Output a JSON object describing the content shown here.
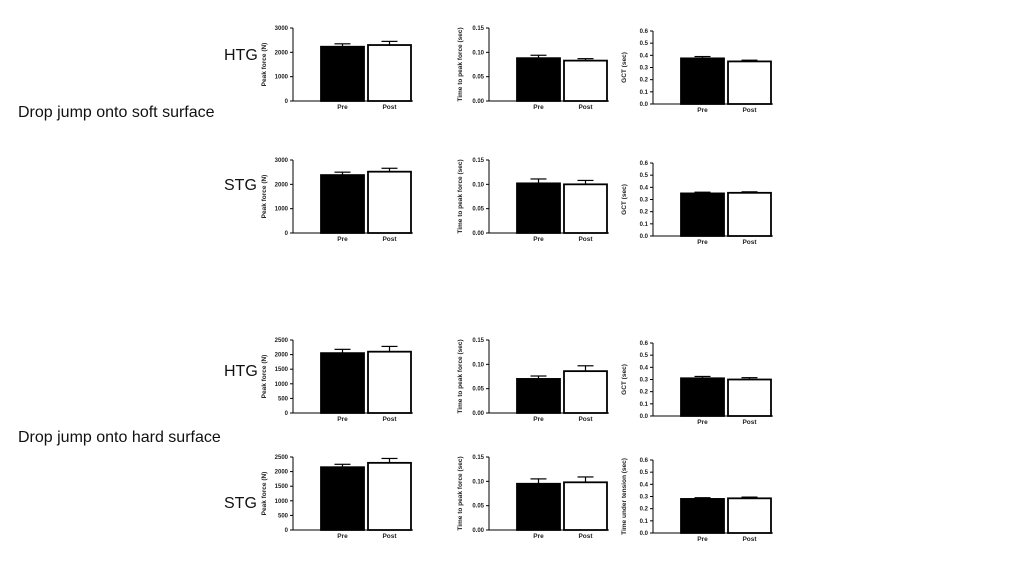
{
  "labels": {
    "soft_section": "Drop jump onto soft surface",
    "hard_section": "Drop jump onto hard surface",
    "row1_group": "HTG",
    "row2_group": "STG",
    "row3_group": "HTG",
    "row4_group": "STG"
  },
  "chart_data": [
    {
      "type": "bar",
      "panel": "soft-HTG-peak-force",
      "categories": [
        "Pre",
        "Post"
      ],
      "values": [
        2230,
        2300
      ],
      "errors": [
        120,
        150
      ],
      "ylabel": "Peak force (N)",
      "ylim": [
        0,
        3000
      ],
      "yticks": [
        "0",
        "1000",
        "2000",
        "3000"
      ]
    },
    {
      "type": "bar",
      "panel": "soft-HTG-time-to-peak",
      "categories": [
        "Pre",
        "Post"
      ],
      "values": [
        0.088,
        0.083
      ],
      "errors": [
        0.006,
        0.004
      ],
      "ylabel": "Time to peak force (sec)",
      "ylim": [
        0,
        0.15
      ],
      "yticks": [
        "0.00",
        "0.05",
        "0.10",
        "0.15"
      ]
    },
    {
      "type": "bar",
      "panel": "soft-HTG-gct",
      "categories": [
        "Pre",
        "Post"
      ],
      "values": [
        0.375,
        0.35
      ],
      "errors": [
        0.015,
        0.01
      ],
      "ylabel": "GCT (sec)",
      "ylim": [
        0,
        0.6
      ],
      "yticks": [
        "0.0",
        "0.1",
        "0.2",
        "0.3",
        "0.4",
        "0.5",
        "0.6"
      ]
    },
    {
      "type": "bar",
      "panel": "soft-STG-peak-force",
      "categories": [
        "Pre",
        "Post"
      ],
      "values": [
        2380,
        2520
      ],
      "errors": [
        120,
        140
      ],
      "ylabel": "Peak force (N)",
      "ylim": [
        0,
        3000
      ],
      "yticks": [
        "0",
        "1000",
        "2000",
        "3000"
      ]
    },
    {
      "type": "bar",
      "panel": "soft-STG-time-to-peak",
      "categories": [
        "Pre",
        "Post"
      ],
      "values": [
        0.102,
        0.1
      ],
      "errors": [
        0.009,
        0.008
      ],
      "ylabel": "Time to peak force (sec)",
      "ylim": [
        0,
        0.15
      ],
      "yticks": [
        "0.00",
        "0.05",
        "0.10",
        "0.15"
      ]
    },
    {
      "type": "bar",
      "panel": "soft-STG-gct",
      "categories": [
        "Pre",
        "Post"
      ],
      "values": [
        0.35,
        0.355
      ],
      "errors": [
        0.01,
        0.008
      ],
      "ylabel": "GCT (sec)",
      "ylim": [
        0,
        0.6
      ],
      "yticks": [
        "0.0",
        "0.1",
        "0.2",
        "0.3",
        "0.4",
        "0.5",
        "0.6"
      ]
    },
    {
      "type": "bar",
      "panel": "hard-HTG-peak-force",
      "categories": [
        "Pre",
        "Post"
      ],
      "values": [
        2050,
        2100
      ],
      "errors": [
        130,
        180
      ],
      "ylabel": "Peak force (N)",
      "ylim": [
        0,
        2500
      ],
      "yticks": [
        "0",
        "500",
        "1000",
        "1500",
        "2000",
        "2500"
      ]
    },
    {
      "type": "bar",
      "panel": "hard-HTG-time-to-peak",
      "categories": [
        "Pre",
        "Post"
      ],
      "values": [
        0.07,
        0.086
      ],
      "errors": [
        0.006,
        0.011
      ],
      "ylabel": "Time to peak force (sec)",
      "ylim": [
        0,
        0.15
      ],
      "yticks": [
        "0.00",
        "0.05",
        "0.10",
        "0.15"
      ]
    },
    {
      "type": "bar",
      "panel": "hard-HTG-gct",
      "categories": [
        "Pre",
        "Post"
      ],
      "values": [
        0.31,
        0.3
      ],
      "errors": [
        0.015,
        0.015
      ],
      "ylabel": "GCT (sec)",
      "ylim": [
        0,
        0.6
      ],
      "yticks": [
        "0.0",
        "0.1",
        "0.2",
        "0.3",
        "0.4",
        "0.5",
        "0.6"
      ]
    },
    {
      "type": "bar",
      "panel": "hard-STG-peak-force",
      "categories": [
        "Pre",
        "Post"
      ],
      "values": [
        2150,
        2300
      ],
      "errors": [
        100,
        150
      ],
      "ylabel": "Peak force (N)",
      "ylim": [
        0,
        2500
      ],
      "yticks": [
        "0",
        "500",
        "1000",
        "1500",
        "2000",
        "2500"
      ]
    },
    {
      "type": "bar",
      "panel": "hard-STG-time-to-peak",
      "categories": [
        "Pre",
        "Post"
      ],
      "values": [
        0.095,
        0.098
      ],
      "errors": [
        0.01,
        0.011
      ],
      "ylabel": "Time to peak force (sec)",
      "ylim": [
        0,
        0.15
      ],
      "yticks": [
        "0.00",
        "0.05",
        "0.10",
        "0.15"
      ]
    },
    {
      "type": "bar",
      "panel": "hard-STG-time-under-tension",
      "categories": [
        "Pre",
        "Post"
      ],
      "values": [
        0.28,
        0.285
      ],
      "errors": [
        0.01,
        0.01
      ],
      "ylabel": "Time under tension (sec)",
      "ylim": [
        0,
        0.6
      ],
      "yticks": [
        "0.0",
        "0.1",
        "0.2",
        "0.3",
        "0.4",
        "0.5",
        "0.6"
      ]
    }
  ],
  "colors": {
    "pre": "#000000",
    "post": "#ffffff",
    "axis": "#000000"
  }
}
